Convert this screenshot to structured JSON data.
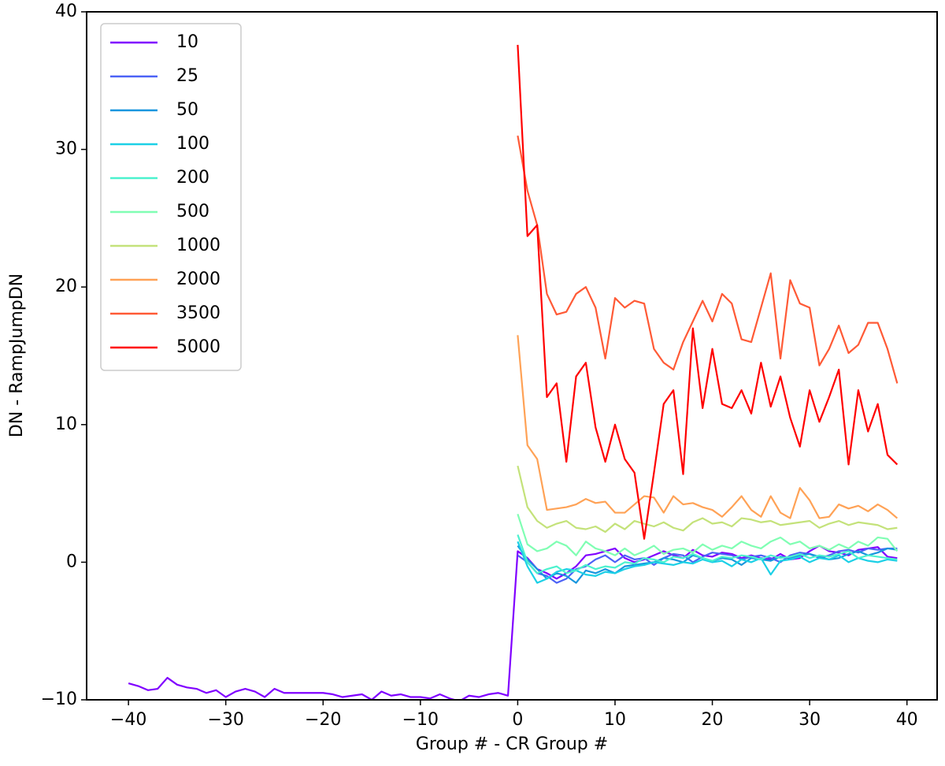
{
  "chart_data": {
    "type": "line",
    "xlabel": "Group # - CR Group #",
    "ylabel": "DN - RampJumpDN",
    "x": [
      -40,
      -39,
      -38,
      -37,
      -36,
      -35,
      -34,
      -33,
      -32,
      -31,
      -30,
      -29,
      -28,
      -27,
      -26,
      -25,
      -24,
      -23,
      -22,
      -21,
      -20,
      -19,
      -18,
      -17,
      -16,
      -15,
      -14,
      -13,
      -12,
      -11,
      -10,
      -9,
      -8,
      -7,
      -6,
      -5,
      -4,
      -3,
      -2,
      -1,
      0,
      1,
      2,
      3,
      4,
      5,
      6,
      7,
      8,
      9,
      10,
      11,
      12,
      13,
      14,
      15,
      16,
      17,
      18,
      19,
      20,
      21,
      22,
      23,
      24,
      25,
      26,
      27,
      28,
      29,
      30,
      31,
      32,
      33,
      34,
      35,
      36,
      37,
      38,
      39
    ],
    "series": [
      {
        "name": "10",
        "color": "#8000ff",
        "values": [
          -8.8,
          -9.0,
          -9.3,
          -9.2,
          -8.4,
          -8.9,
          -9.1,
          -9.2,
          -9.5,
          -9.3,
          -9.8,
          -9.4,
          -9.2,
          -9.4,
          -9.8,
          -9.2,
          -9.5,
          -9.5,
          -9.5,
          -9.5,
          -9.5,
          -9.6,
          -9.8,
          -9.7,
          -9.6,
          -10.0,
          -9.4,
          -9.7,
          -9.6,
          -9.8,
          -9.8,
          -9.9,
          -9.6,
          -9.9,
          -10.1,
          -9.7,
          -9.8,
          -9.6,
          -9.5,
          -9.7,
          0.8,
          0.3,
          -0.5,
          -0.8,
          -1.2,
          -0.8,
          -0.3,
          0.5,
          0.6,
          0.8,
          1.0,
          0.3,
          0.0,
          0.2,
          0.5,
          0.8,
          0.5,
          0.3,
          0.9,
          0.5,
          0.4,
          0.7,
          0.6,
          0.3,
          0.5,
          0.3,
          0.2,
          0.6,
          0.2,
          0.3,
          0.8,
          1.2,
          0.8,
          0.7,
          0.5,
          0.9,
          1.0,
          1.1,
          0.4,
          0.3
        ]
      },
      {
        "name": "25",
        "color": "#4c62f6",
        "values": [
          null,
          null,
          null,
          null,
          null,
          null,
          null,
          null,
          null,
          null,
          null,
          null,
          null,
          null,
          null,
          null,
          null,
          null,
          null,
          null,
          null,
          null,
          null,
          null,
          null,
          null,
          null,
          null,
          null,
          null,
          null,
          null,
          null,
          null,
          null,
          null,
          null,
          null,
          null,
          null,
          0.5,
          0.0,
          -0.8,
          -1.0,
          -1.5,
          -1.2,
          -0.5,
          -0.3,
          0.2,
          0.5,
          0.0,
          0.5,
          0.2,
          0.3,
          -0.2,
          0.3,
          0.6,
          0.5,
          0.0,
          0.4,
          0.7,
          0.6,
          0.5,
          0.2,
          0.4,
          0.5,
          0.3,
          0.0,
          0.5,
          0.7,
          0.6,
          0.3,
          0.5,
          0.8,
          0.9,
          0.7,
          1.0,
          0.9,
          1.0,
          1.0
        ]
      },
      {
        "name": "50",
        "color": "#1996de",
        "values": [
          null,
          null,
          null,
          null,
          null,
          null,
          null,
          null,
          null,
          null,
          null,
          null,
          null,
          null,
          null,
          null,
          null,
          null,
          null,
          null,
          null,
          null,
          null,
          null,
          null,
          null,
          null,
          null,
          null,
          null,
          null,
          null,
          null,
          null,
          null,
          null,
          null,
          null,
          null,
          null,
          1.2,
          0.2,
          -0.5,
          -1.2,
          -0.8,
          -1.0,
          -1.5,
          -0.6,
          -0.8,
          -0.5,
          -0.8,
          -0.3,
          -0.2,
          -0.1,
          0.0,
          0.3,
          0.2,
          0.0,
          0.5,
          0.3,
          0.1,
          0.3,
          0.2,
          -0.2,
          0.3,
          0.2,
          0.1,
          0.4,
          0.3,
          0.5,
          0.6,
          0.4,
          0.2,
          0.3,
          0.6,
          0.8,
          0.5,
          0.7,
          1.0,
          0.9
        ]
      },
      {
        "name": "100",
        "color": "#1cd0e6",
        "values": [
          null,
          null,
          null,
          null,
          null,
          null,
          null,
          null,
          null,
          null,
          null,
          null,
          null,
          null,
          null,
          null,
          null,
          null,
          null,
          null,
          null,
          null,
          null,
          null,
          null,
          null,
          null,
          null,
          null,
          null,
          null,
          null,
          null,
          null,
          null,
          null,
          null,
          null,
          null,
          null,
          1.5,
          -0.3,
          -1.5,
          -1.2,
          -0.7,
          -0.5,
          -0.6,
          -0.9,
          -1.0,
          -0.7,
          -0.8,
          -0.5,
          -0.3,
          -0.2,
          0.0,
          -0.1,
          -0.2,
          0.0,
          -0.1,
          0.2,
          0.0,
          0.1,
          -0.3,
          0.2,
          0.0,
          0.3,
          -0.9,
          0.1,
          0.2,
          0.4,
          0.0,
          0.3,
          0.2,
          0.5,
          0.0,
          0.3,
          0.1,
          0.0,
          0.2,
          0.1
        ]
      },
      {
        "name": "200",
        "color": "#4cf2ce",
        "values": [
          null,
          null,
          null,
          null,
          null,
          null,
          null,
          null,
          null,
          null,
          null,
          null,
          null,
          null,
          null,
          null,
          null,
          null,
          null,
          null,
          null,
          null,
          null,
          null,
          null,
          null,
          null,
          null,
          null,
          null,
          null,
          null,
          null,
          null,
          null,
          null,
          null,
          null,
          null,
          null,
          2.0,
          0.0,
          -0.8,
          -0.5,
          -0.3,
          -0.8,
          -0.6,
          -0.2,
          -0.5,
          -0.3,
          -0.4,
          0.0,
          -0.1,
          0.3,
          0.2,
          0.0,
          0.4,
          0.3,
          0.6,
          0.3,
          0.1,
          0.4,
          0.3,
          0.5,
          0.4,
          0.2,
          0.5,
          0.3,
          0.4,
          0.6,
          0.3,
          0.5,
          0.4,
          0.6,
          0.8,
          0.3,
          0.5,
          0.4,
          0.3,
          0.2
        ]
      },
      {
        "name": "500",
        "color": "#80feb3",
        "values": [
          null,
          null,
          null,
          null,
          null,
          null,
          null,
          null,
          null,
          null,
          null,
          null,
          null,
          null,
          null,
          null,
          null,
          null,
          null,
          null,
          null,
          null,
          null,
          null,
          null,
          null,
          null,
          null,
          null,
          null,
          null,
          null,
          null,
          null,
          null,
          null,
          null,
          null,
          null,
          null,
          3.5,
          1.3,
          0.8,
          1.0,
          1.5,
          1.2,
          0.5,
          1.5,
          1.0,
          0.8,
          0.5,
          1.0,
          0.5,
          0.8,
          1.2,
          0.6,
          0.9,
          1.0,
          0.7,
          1.3,
          0.9,
          1.2,
          1.0,
          1.5,
          1.2,
          1.0,
          1.5,
          1.8,
          1.3,
          1.5,
          1.0,
          1.2,
          0.9,
          1.3,
          1.0,
          1.5,
          1.2,
          1.8,
          1.7,
          0.8
        ]
      },
      {
        "name": "1000",
        "color": "#c4e27a",
        "values": [
          null,
          null,
          null,
          null,
          null,
          null,
          null,
          null,
          null,
          null,
          null,
          null,
          null,
          null,
          null,
          null,
          null,
          null,
          null,
          null,
          null,
          null,
          null,
          null,
          null,
          null,
          null,
          null,
          null,
          null,
          null,
          null,
          null,
          null,
          null,
          null,
          null,
          null,
          null,
          null,
          7.0,
          4.0,
          3.0,
          2.5,
          2.8,
          3.0,
          2.5,
          2.4,
          2.6,
          2.2,
          2.8,
          2.4,
          3.0,
          2.8,
          2.6,
          2.9,
          2.5,
          2.3,
          2.9,
          3.2,
          2.8,
          2.9,
          2.6,
          3.2,
          3.1,
          2.9,
          3.0,
          2.7,
          2.8,
          2.9,
          3.0,
          2.5,
          2.8,
          3.0,
          2.7,
          2.9,
          2.8,
          2.7,
          2.4,
          2.5
        ]
      },
      {
        "name": "2000",
        "color": "#ffa256",
        "values": [
          null,
          null,
          null,
          null,
          null,
          null,
          null,
          null,
          null,
          null,
          null,
          null,
          null,
          null,
          null,
          null,
          null,
          null,
          null,
          null,
          null,
          null,
          null,
          null,
          null,
          null,
          null,
          null,
          null,
          null,
          null,
          null,
          null,
          null,
          null,
          null,
          null,
          null,
          null,
          null,
          16.5,
          8.5,
          7.5,
          3.8,
          3.9,
          4.0,
          4.2,
          4.6,
          4.3,
          4.4,
          3.6,
          3.6,
          4.2,
          4.8,
          4.7,
          3.6,
          4.8,
          4.2,
          4.3,
          4.0,
          3.8,
          3.3,
          4.0,
          4.8,
          3.8,
          3.3,
          4.8,
          3.6,
          3.2,
          5.4,
          4.5,
          3.2,
          3.3,
          4.2,
          3.9,
          4.1,
          3.7,
          4.2,
          3.8,
          3.2
        ]
      },
      {
        "name": "3500",
        "color": "#ff5a36",
        "values": [
          null,
          null,
          null,
          null,
          null,
          null,
          null,
          null,
          null,
          null,
          null,
          null,
          null,
          null,
          null,
          null,
          null,
          null,
          null,
          null,
          null,
          null,
          null,
          null,
          null,
          null,
          null,
          null,
          null,
          null,
          null,
          null,
          null,
          null,
          null,
          null,
          null,
          null,
          null,
          null,
          31.0,
          27.0,
          24.5,
          19.5,
          18.0,
          18.2,
          19.5,
          20.0,
          18.5,
          14.8,
          19.2,
          18.5,
          19.0,
          18.8,
          15.5,
          14.5,
          14.0,
          16.0,
          17.5,
          19.0,
          17.5,
          19.5,
          18.8,
          16.2,
          16.0,
          18.5,
          21.0,
          14.8,
          20.5,
          18.8,
          18.5,
          14.3,
          15.5,
          17.2,
          15.2,
          15.8,
          17.4,
          17.4,
          15.5,
          13.0
        ]
      },
      {
        "name": "5000",
        "color": "#ff0000",
        "values": [
          null,
          null,
          null,
          null,
          null,
          null,
          null,
          null,
          null,
          null,
          null,
          null,
          null,
          null,
          null,
          null,
          null,
          null,
          null,
          null,
          null,
          null,
          null,
          null,
          null,
          null,
          null,
          null,
          null,
          null,
          null,
          null,
          null,
          null,
          null,
          null,
          null,
          null,
          null,
          null,
          37.6,
          23.7,
          24.5,
          12.0,
          13.0,
          7.3,
          13.5,
          14.5,
          9.8,
          7.3,
          10.0,
          7.5,
          6.5,
          1.7,
          6.5,
          11.5,
          12.5,
          6.4,
          17.0,
          11.2,
          15.5,
          11.5,
          11.2,
          12.5,
          10.8,
          14.5,
          11.3,
          13.5,
          10.5,
          8.4,
          12.5,
          10.2,
          12.0,
          14.0,
          7.1,
          12.5,
          9.5,
          11.5,
          7.8,
          7.1
        ]
      }
    ],
    "xlim": [
      -44.3,
      43.1
    ],
    "xticks": [
      {
        "value": -40,
        "label": "−40"
      },
      {
        "value": -30,
        "label": "−30"
      },
      {
        "value": -20,
        "label": "−20"
      },
      {
        "value": -10,
        "label": "−10"
      },
      0,
      10,
      20,
      30,
      40
    ],
    "ylim": [
      -10,
      40
    ],
    "yticks": [
      {
        "value": -10,
        "label": "−10"
      },
      0,
      10,
      20,
      30,
      40
    ],
    "legend": "upper left"
  }
}
